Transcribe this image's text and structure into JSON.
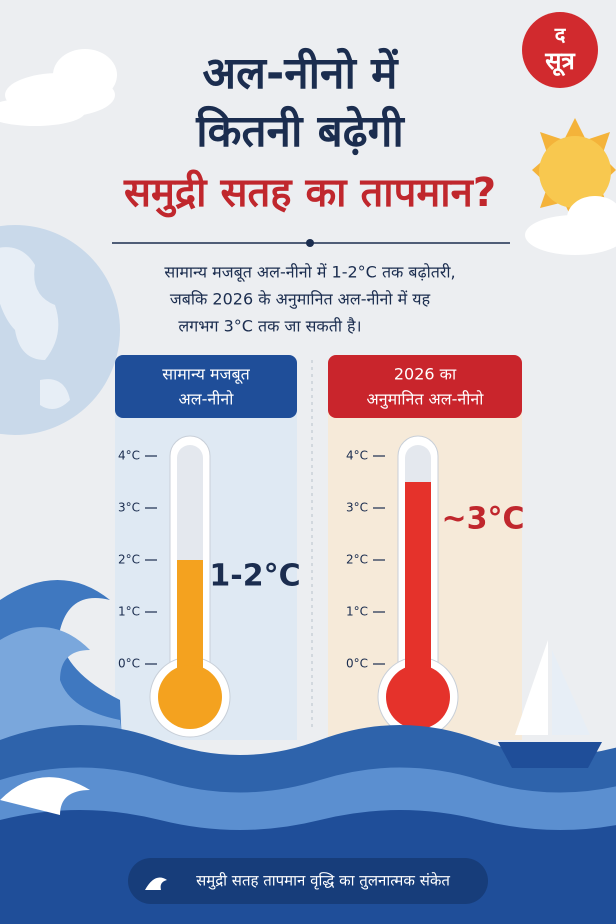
{
  "header": {
    "title_lines": [
      "अल-नीनो में",
      "कितनी बढ़ेगी",
      "समुद्री सतह का तापमान?"
    ],
    "logo": [
      "द",
      "सूत्र"
    ]
  },
  "subtitle_lines": [
    "सामान्य मजबूत अल-नीनो में 1-2°C तक बढ़ोतरी,",
    "जबकि 2026 के अनुमानित अल-नीनो में यह",
    "लगभग 3°C तक जा सकती है।"
  ],
  "scale": {
    "ylim": [
      0,
      4
    ],
    "ticks": [
      {
        "value": 0,
        "label": "0°C"
      },
      {
        "value": 1,
        "label": "1°C"
      },
      {
        "value": 2,
        "label": "2°C"
      },
      {
        "value": 3,
        "label": "3°C"
      },
      {
        "value": 4,
        "label": "4°C"
      }
    ]
  },
  "thermometers": [
    {
      "heading_lines": [
        "सामान्य मजबूत",
        "अल-नीनो"
      ],
      "label": "1-2°C",
      "level": 2,
      "color": "#f4a21f",
      "label_color": "#1b2d4f",
      "header_color": "#1f4e99",
      "body_color": "#dfe9f3"
    },
    {
      "heading_lines": [
        "2026 का",
        "अनुमानित अल-नीनो"
      ],
      "label": "~3°C",
      "level": 3.5,
      "color": "#e5322b",
      "label_color": "#c0272d",
      "header_color": "#c9252c",
      "body_color": "#f6ead9"
    }
  ],
  "footer": "समुद्री सतह तापमान वृद्धि का तुलनात्मक संकेत"
}
